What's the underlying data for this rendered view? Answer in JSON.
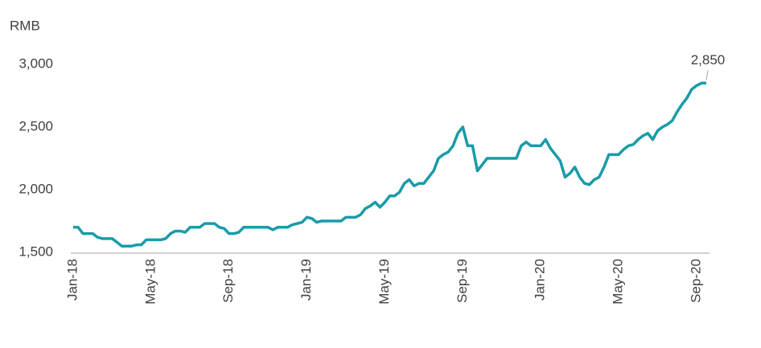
{
  "chart_data": {
    "type": "line",
    "y_label": "RMB",
    "categories": [
      "Jan-18",
      null,
      null,
      null,
      null,
      null,
      null,
      null,
      null,
      null,
      null,
      null,
      null,
      null,
      null,
      null,
      "May-18",
      null,
      null,
      null,
      null,
      null,
      null,
      null,
      null,
      null,
      null,
      null,
      null,
      null,
      null,
      null,
      "Sep-18",
      null,
      null,
      null,
      null,
      null,
      null,
      null,
      null,
      null,
      null,
      null,
      null,
      null,
      null,
      null,
      "Jan-19",
      null,
      null,
      null,
      null,
      null,
      null,
      null,
      null,
      null,
      null,
      null,
      null,
      null,
      null,
      null,
      "May-19",
      null,
      null,
      null,
      null,
      null,
      null,
      null,
      null,
      null,
      null,
      null,
      null,
      null,
      null,
      null,
      "Sep-19",
      null,
      null,
      null,
      null,
      null,
      null,
      null,
      null,
      null,
      null,
      null,
      null,
      null,
      null,
      null,
      "Jan-20",
      null,
      null,
      null,
      null,
      null,
      null,
      null,
      null,
      null,
      null,
      null,
      null,
      null,
      null,
      null,
      "May-20",
      null,
      null,
      null,
      null,
      null,
      null,
      null,
      null,
      null,
      null,
      null,
      null,
      null,
      null,
      null,
      "Sep-20",
      null,
      null
    ],
    "series": [
      {
        "color": "#1a9ba8",
        "values": [
          1700,
          1700,
          1650,
          1650,
          1650,
          1620,
          1610,
          1610,
          1610,
          1580,
          1550,
          1550,
          1550,
          1560,
          1560,
          1600,
          1600,
          1600,
          1600,
          1610,
          1650,
          1670,
          1670,
          1660,
          1700,
          1700,
          1700,
          1730,
          1730,
          1730,
          1700,
          1690,
          1650,
          1650,
          1660,
          1700,
          1700,
          1700,
          1700,
          1700,
          1700,
          1680,
          1700,
          1700,
          1700,
          1720,
          1730,
          1740,
          1780,
          1770,
          1740,
          1750,
          1750,
          1750,
          1750,
          1750,
          1780,
          1780,
          1780,
          1800,
          1850,
          1870,
          1900,
          1860,
          1900,
          1950,
          1950,
          1980,
          2050,
          2080,
          2030,
          2050,
          2050,
          2100,
          2150,
          2250,
          2280,
          2300,
          2350,
          2450,
          2500,
          2350,
          2350,
          2150,
          2200,
          2250,
          2250,
          2250,
          2250,
          2250,
          2250,
          2250,
          2350,
          2380,
          2350,
          2350,
          2350,
          2400,
          2330,
          2280,
          2230,
          2100,
          2130,
          2180,
          2100,
          2050,
          2040,
          2080,
          2100,
          2180,
          2280,
          2280,
          2280,
          2320,
          2350,
          2360,
          2400,
          2430,
          2450,
          2400,
          2470,
          2500,
          2520,
          2550,
          2620,
          2680,
          2730,
          2800,
          2830,
          2850,
          2850
        ],
        "value_labels": [
          null,
          null,
          null,
          null,
          null,
          null,
          null,
          null,
          null,
          null,
          null,
          null,
          null,
          null,
          null,
          null,
          null,
          null,
          null,
          null,
          null,
          null,
          null,
          null,
          null,
          null,
          null,
          null,
          null,
          null,
          null,
          null,
          null,
          null,
          null,
          null,
          null,
          null,
          null,
          null,
          null,
          null,
          null,
          null,
          null,
          null,
          null,
          null,
          null,
          null,
          null,
          null,
          null,
          null,
          null,
          null,
          null,
          null,
          null,
          null,
          null,
          null,
          null,
          null,
          null,
          null,
          null,
          null,
          null,
          null,
          null,
          null,
          null,
          null,
          null,
          null,
          null,
          null,
          null,
          null,
          null,
          null,
          null,
          null,
          null,
          null,
          null,
          null,
          null,
          null,
          null,
          null,
          null,
          null,
          null,
          null,
          null,
          null,
          null,
          null,
          null,
          null,
          null,
          null,
          null,
          null,
          null,
          null,
          null,
          null,
          null,
          null,
          null,
          null,
          null,
          null,
          null,
          null,
          null,
          null,
          null,
          null,
          null,
          null,
          null,
          null,
          null,
          null,
          null,
          null,
          "2,850"
        ]
      }
    ],
    "ylim": [
      1500,
      3000
    ],
    "yticks": [
      {
        "value": 1500,
        "label": "1,500"
      },
      {
        "value": 2000,
        "label": "2,000"
      },
      {
        "value": 2500,
        "label": "2,500"
      },
      {
        "value": 3000,
        "label": "3,000"
      }
    ]
  }
}
